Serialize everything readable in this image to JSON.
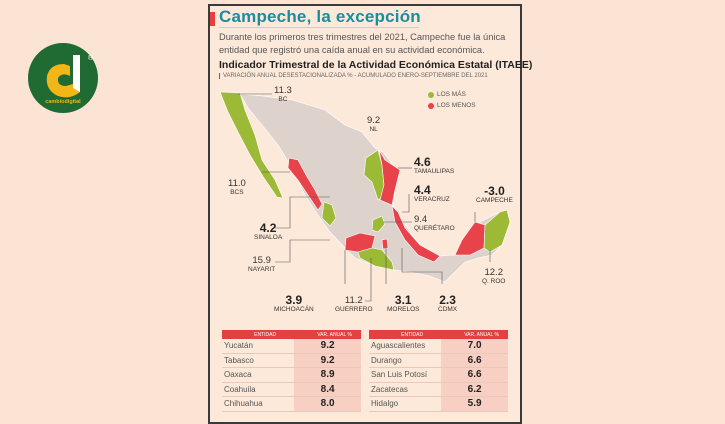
{
  "logo": {
    "text": "cambiodigital",
    "mark": "d",
    "registered": "®"
  },
  "article": {
    "title": "Campeche, la excepción",
    "intro": "Durante los primeros tres trimestres del 2021, Campeche fue la única entidad que registró una caída anual en su actividad económica.",
    "subtitle": "Indicador Trimestral de la Actividad Económica Estatal (ITAEE)",
    "subtitle2": "VARIACIÓN ANUAL DESESTACIONALIZADA % - ACUMULADO ENERO-SEPTIEMBRE DEL 2021"
  },
  "colors": {
    "mas": "#9cba35",
    "menos": "#e8434a",
    "title": "#1a8d9f",
    "land": "#ddd3cc"
  },
  "legend": [
    {
      "label": "LOS MÁS",
      "color": "#9cba35"
    },
    {
      "label": "LOS MENOS",
      "color": "#e8434a"
    }
  ],
  "map_labels": {
    "bc": {
      "value": "11.3",
      "name": "BC"
    },
    "bcs": {
      "value": "11.0",
      "name": "BCS"
    },
    "nl": {
      "value": "9.2",
      "name": "NL"
    },
    "tamaulipas": {
      "value": "4.6",
      "name": "TAMAULIPAS"
    },
    "veracruz": {
      "value": "4.4",
      "name": "VERACRUZ"
    },
    "campeche": {
      "value": "-3.0",
      "name": "CAMPECHE"
    },
    "queretaro": {
      "value": "9.4",
      "name": "QUERÉTARO"
    },
    "sinaloa": {
      "value": "4.2",
      "name": "SINALOA"
    },
    "nayarit": {
      "value": "15.9",
      "name": "NAYARIT"
    },
    "qroo": {
      "value": "12.2",
      "name": "Q. ROO"
    },
    "michoacan": {
      "value": "3.9",
      "name": "MICHOACÁN"
    },
    "guerrero": {
      "value": "11.2",
      "name": "GUERRERO"
    },
    "morelos": {
      "value": "3.1",
      "name": "MORELOS"
    },
    "cdmx": {
      "value": "2.3",
      "name": "CDMX"
    }
  },
  "tables": {
    "header": {
      "entity": "ENTIDAD",
      "value": "VAR. ANUAL %"
    },
    "left": [
      {
        "e": "Yucatán",
        "v": "9.2"
      },
      {
        "e": "Tabasco",
        "v": "9.2"
      },
      {
        "e": "Oaxaca",
        "v": "8.9"
      },
      {
        "e": "Coahuila",
        "v": "8.4"
      },
      {
        "e": "Chihuahua",
        "v": "8.0"
      }
    ],
    "right": [
      {
        "e": "Aguascalientes",
        "v": "7.0"
      },
      {
        "e": "Durango",
        "v": "6.6"
      },
      {
        "e": "San Luis Potosí",
        "v": "6.6"
      },
      {
        "e": "Zacatecas",
        "v": "6.2"
      },
      {
        "e": "Hidalgo",
        "v": "5.9"
      }
    ]
  }
}
